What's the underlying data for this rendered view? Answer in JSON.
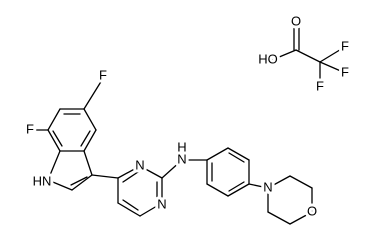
{
  "trifluoroacetic_acid": {
    "carbonyl_o": "O",
    "hydroxyl": "HO",
    "fluorines": [
      "F",
      "F",
      "F"
    ]
  },
  "main_molecule": {
    "indole_fluorines": [
      "F",
      "F"
    ],
    "indole_nh": "HN",
    "pyrimidine_n": [
      "N",
      "N"
    ],
    "amine_h": "H",
    "amine_n": "N",
    "morpholine_n": "N",
    "morpholine_o": "O"
  }
}
